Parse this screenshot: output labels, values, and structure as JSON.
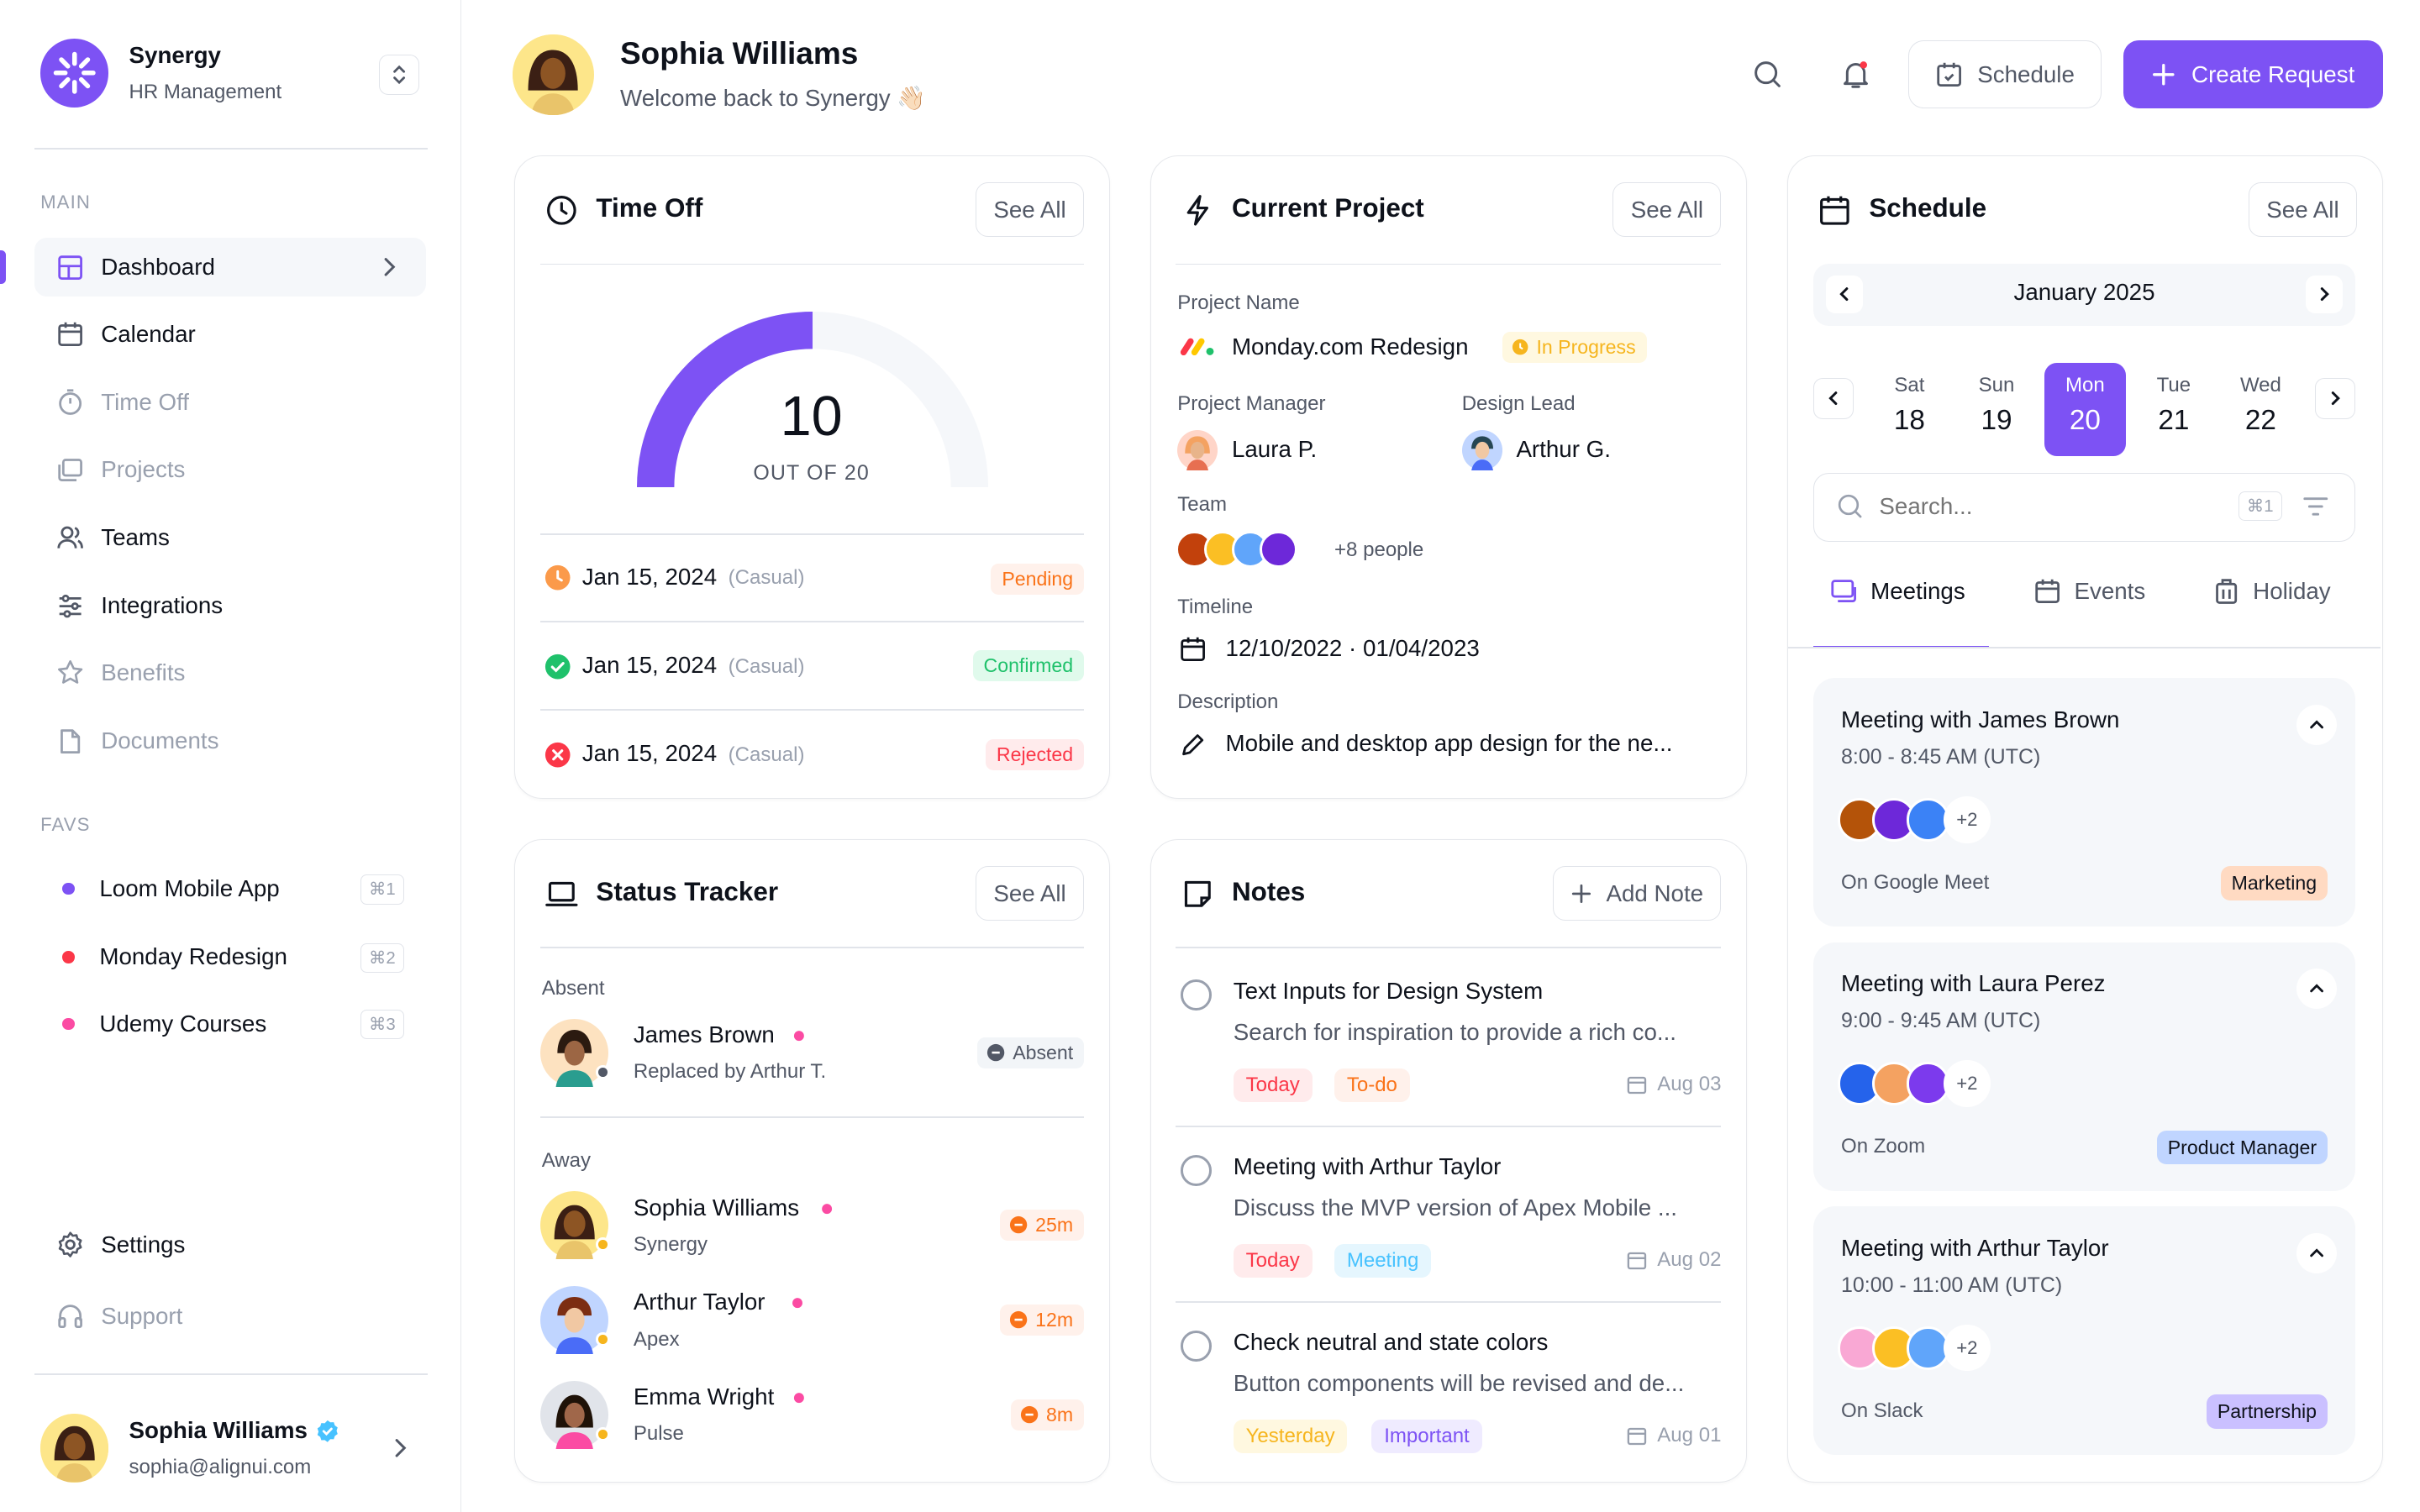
{
  "app": {
    "name": "Synergy",
    "subtitle": "HR Management"
  },
  "sidebar": {
    "main_label": "MAIN",
    "items": [
      {
        "label": "Dashboard"
      },
      {
        "label": "Calendar"
      },
      {
        "label": "Time Off"
      },
      {
        "label": "Projects"
      },
      {
        "label": "Teams"
      },
      {
        "label": "Integrations"
      },
      {
        "label": "Benefits"
      },
      {
        "label": "Documents"
      }
    ],
    "favs_label": "FAVS",
    "favs": [
      {
        "label": "Loom Mobile App",
        "shortcut": "⌘1",
        "color": "#7d52f4"
      },
      {
        "label": "Monday Redesign",
        "shortcut": "⌘2",
        "color": "#fb3748"
      },
      {
        "label": "Udemy Courses",
        "shortcut": "⌘3",
        "color": "#fb4ba3"
      }
    ],
    "settings": "Settings",
    "support": "Support",
    "user": {
      "name": "Sophia Williams",
      "email": "sophia@alignui.com"
    }
  },
  "header": {
    "name": "Sophia Williams",
    "welcome": "Welcome back to Synergy 👋🏻",
    "schedule_btn": "Schedule",
    "create_btn": "Create Request"
  },
  "time_off": {
    "title": "Time Off",
    "see_all": "See All",
    "value": "10",
    "out_of": "OUT OF 20",
    "progress": 0.5,
    "entries": [
      {
        "date": "Jan 15, 2024",
        "type": "(Casual)",
        "status": "Pending"
      },
      {
        "date": "Jan 15, 2024",
        "type": "(Casual)",
        "status": "Confirmed"
      },
      {
        "date": "Jan 15, 2024",
        "type": "(Casual)",
        "status": "Rejected"
      }
    ]
  },
  "project": {
    "title": "Current Project",
    "see_all": "See All",
    "name_label": "Project Name",
    "name": "Monday.com Redesign",
    "status": "In Progress",
    "manager_label": "Project Manager",
    "manager": "Laura P.",
    "lead_label": "Design Lead",
    "lead": "Arthur G.",
    "team_label": "Team",
    "team_more": "+8 people",
    "timeline_label": "Timeline",
    "timeline": "12/10/2022 · 01/04/2023",
    "description_label": "Description",
    "description": "Mobile and desktop app design for the ne..."
  },
  "schedule": {
    "title": "Schedule",
    "see_all": "See All",
    "month": "January 2025",
    "days": [
      {
        "dow": "Sat",
        "num": "18"
      },
      {
        "dow": "Sun",
        "num": "19"
      },
      {
        "dow": "Mon",
        "num": "20"
      },
      {
        "dow": "Tue",
        "num": "21"
      },
      {
        "dow": "Wed",
        "num": "22"
      }
    ],
    "search_placeholder": "Search...",
    "search_shortcut": "⌘1",
    "tabs": [
      "Meetings",
      "Events",
      "Holiday"
    ],
    "meetings": [
      {
        "title": "Meeting with James Brown",
        "time": "8:00 - 8:45 AM (UTC)",
        "more": "+2",
        "platform": "On Google Meet",
        "tag": "Marketing"
      },
      {
        "title": "Meeting with Laura Perez",
        "time": "9:00 - 9:45 AM (UTC)",
        "more": "+2",
        "platform": "On Zoom",
        "tag": "Product Manager"
      },
      {
        "title": "Meeting with Arthur Taylor",
        "time": "10:00 - 11:00 AM (UTC)",
        "more": "+2",
        "platform": "On Slack",
        "tag": "Partnership"
      }
    ]
  },
  "status": {
    "title": "Status Tracker",
    "see_all": "See All",
    "absent_label": "Absent",
    "away_label": "Away",
    "absent": {
      "name": "James Brown",
      "sub": "Replaced by Arthur T.",
      "badge": "Absent"
    },
    "away": [
      {
        "name": "Sophia Williams",
        "sub": "Synergy",
        "badge": "25m"
      },
      {
        "name": "Arthur Taylor",
        "sub": "Apex",
        "badge": "12m"
      },
      {
        "name": "Emma Wright",
        "sub": "Pulse",
        "badge": "8m"
      }
    ]
  },
  "notes": {
    "title": "Notes",
    "add": "Add Note",
    "items": [
      {
        "title": "Text Inputs for Design System",
        "desc": "Search for inspiration to provide a rich co...",
        "tags": [
          "Today",
          "To-do"
        ],
        "date": "Aug 03"
      },
      {
        "title": "Meeting with Arthur Taylor",
        "desc": "Discuss the MVP version of Apex Mobile ...",
        "tags": [
          "Today",
          "Meeting"
        ],
        "date": "Aug 02"
      },
      {
        "title": "Check neutral and state colors",
        "desc": "Button components will be revised and de...",
        "tags": [
          "Yesterday",
          "Important"
        ],
        "date": "Aug 01"
      }
    ]
  }
}
